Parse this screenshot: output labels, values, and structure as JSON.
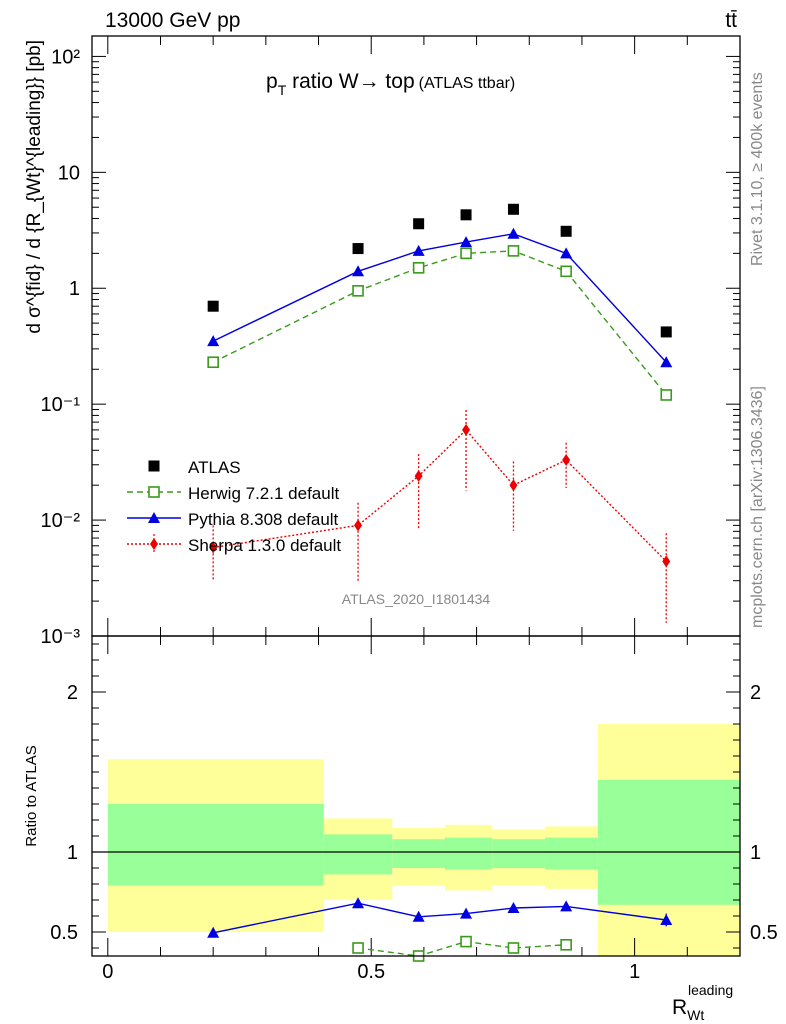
{
  "header": {
    "energy_label": "13000 GeV pp",
    "process_label": "tt̄"
  },
  "side_labels": {
    "rivet": "Rivet 3.1.10, ≥ 400k events",
    "mcplots": "mcplots.cern.ch [arXiv:1306.3436]"
  },
  "chart_data": [
    {
      "type": "scatter",
      "panel": "main",
      "title": "p_T ratio W→ top",
      "title_main": "p",
      "title_sub": "T",
      "title_rest": " ratio W→ top",
      "subtitle": "(ATLAS ttbar)",
      "ylabel": "d σ^{fid} / d {R_{Wt}^{leading}} [pb]",
      "y_scale": "log",
      "ylim": [
        0.001,
        150
      ],
      "xlim": [
        -0.03,
        1.2
      ],
      "y_tick_labels": [
        "10²",
        "10",
        "1",
        "10⁻¹",
        "10⁻²",
        "10⁻³"
      ],
      "watermark": "ATLAS_2020_I1801434",
      "legend_position": "lower-left",
      "series": [
        {
          "name": "ATLAS",
          "color": "#000000",
          "marker": "square-filled",
          "line": "none",
          "x": [
            0.2,
            0.475,
            0.59,
            0.68,
            0.77,
            0.87,
            1.06
          ],
          "y": [
            0.7,
            2.2,
            3.6,
            4.3,
            4.8,
            3.1,
            0.42
          ]
        },
        {
          "name": "Herwig 7.2.1 default",
          "color": "#3a9a1a",
          "marker": "square-open",
          "line": "dashed",
          "x": [
            0.2,
            0.475,
            0.59,
            0.68,
            0.77,
            0.87,
            1.06
          ],
          "y": [
            0.23,
            0.95,
            1.5,
            2.0,
            2.1,
            1.4,
            0.12
          ]
        },
        {
          "name": "Pythia 8.308 default",
          "color": "#0000e0",
          "marker": "triangle",
          "line": "solid",
          "x": [
            0.2,
            0.475,
            0.59,
            0.68,
            0.77,
            0.87,
            1.06
          ],
          "y": [
            0.35,
            1.4,
            2.1,
            2.5,
            2.95,
            2.0,
            0.23
          ]
        },
        {
          "name": "Sherpa 1.3.0 default",
          "color": "#ee0000",
          "marker": "diamond",
          "line": "dotted",
          "x": [
            0.2,
            0.475,
            0.59,
            0.68,
            0.77,
            0.87,
            1.06
          ],
          "y": [
            0.0058,
            0.009,
            0.024,
            0.06,
            0.02,
            0.033,
            0.0044
          ],
          "err_low": [
            0.0028,
            0.0061,
            0.0155,
            0.042,
            0.0119,
            0.0141,
            0.0031
          ],
          "err_high": [
            0.0032,
            0.0051,
            0.0131,
            0.029,
            0.012,
            0.0135,
            0.0033
          ]
        }
      ]
    },
    {
      "type": "scatter",
      "panel": "ratio",
      "ylabel": "Ratio to ATLAS",
      "xlabel": "R_{Wt}^{leading}",
      "xlabel_main": "R",
      "xlabel_sub": "Wt",
      "xlabel_sup": "leading",
      "ylim": [
        0.35,
        2.35
      ],
      "y_tick_labels": [
        "0.5",
        "1",
        "2"
      ],
      "x_tick_labels": [
        "0",
        "0.5",
        "1"
      ],
      "reference_line": 1,
      "bands": [
        {
          "x_low": 0.0,
          "x_high": 0.41,
          "green": [
            0.79,
            1.3
          ],
          "yellow": [
            0.5,
            1.58
          ]
        },
        {
          "x_low": 0.41,
          "x_high": 0.54,
          "green": [
            0.86,
            1.11
          ],
          "yellow": [
            0.7,
            1.21
          ]
        },
        {
          "x_low": 0.54,
          "x_high": 0.64,
          "green": [
            0.9,
            1.08
          ],
          "yellow": [
            0.79,
            1.15
          ]
        },
        {
          "x_low": 0.64,
          "x_high": 0.73,
          "green": [
            0.89,
            1.09
          ],
          "yellow": [
            0.76,
            1.17
          ]
        },
        {
          "x_low": 0.73,
          "x_high": 0.83,
          "green": [
            0.9,
            1.08
          ],
          "yellow": [
            0.79,
            1.14
          ]
        },
        {
          "x_low": 0.83,
          "x_high": 0.93,
          "green": [
            0.89,
            1.09
          ],
          "yellow": [
            0.77,
            1.16
          ]
        },
        {
          "x_low": 0.93,
          "x_high": 1.2,
          "green": [
            0.67,
            1.45
          ],
          "yellow": [
            0.35,
            1.8
          ]
        }
      ],
      "series": [
        {
          "name": "Pythia 8.308 default",
          "color": "#0000e0",
          "marker": "triangle",
          "line": "solid",
          "x": [
            0.2,
            0.475,
            0.59,
            0.68,
            0.77,
            0.87,
            1.06
          ],
          "y": [
            0.495,
            0.68,
            0.595,
            0.615,
            0.65,
            0.66,
            0.575
          ],
          "err": [
            0.025,
            0.025,
            0.02,
            0.02,
            0.02,
            0.02,
            0.04
          ]
        },
        {
          "name": "Herwig 7.2.1 default",
          "color": "#3a9a1a",
          "marker": "square-open",
          "line": "dashed",
          "x": [
            0.475,
            0.59,
            0.68,
            0.77,
            0.87
          ],
          "y": [
            0.4,
            0.35,
            0.44,
            0.4,
            0.42
          ]
        }
      ]
    }
  ]
}
